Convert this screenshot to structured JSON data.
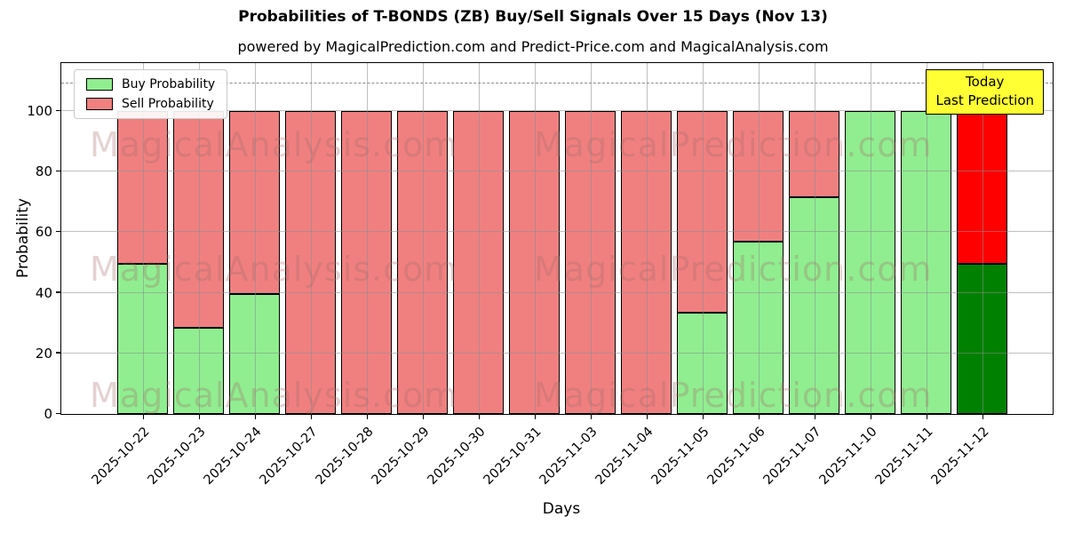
{
  "title": "Probabilities of T-BONDS (ZB) Buy/Sell Signals Over 15 Days (Nov 13)",
  "subtitle": "powered by MagicalPrediction.com and Predict-Price.com and MagicalAnalysis.com",
  "legend": {
    "buy_label": "Buy Probability",
    "sell_label": "Sell Probability"
  },
  "annotation": {
    "line1": "Today",
    "line2": "Last Prediction"
  },
  "axes": {
    "ylabel": "Probability",
    "xlabel": "Days",
    "yticks": [
      0,
      20,
      40,
      60,
      80,
      100
    ]
  },
  "watermarks": {
    "left": "MagicalAnalysis.com",
    "right": "MagicalPrediction.com"
  },
  "colors": {
    "buy": "#90ee90",
    "sell": "#f08080",
    "today_buy": "#008000",
    "today_sell": "#ff0000",
    "annotation_bg": "#ffff33",
    "grid": "#8c8c8c",
    "bar_edge": "#000000"
  },
  "chart_data": {
    "type": "bar",
    "stacked": true,
    "title": "Probabilities of T-BONDS (ZB) Buy/Sell Signals Over 15 Days (Nov 13)",
    "xlabel": "Days",
    "ylabel": "Probability",
    "ylim": [
      0,
      116.4
    ],
    "grid": true,
    "legend_position": "upper left",
    "dashed_line_y": 110,
    "today_index": 15,
    "categories": [
      "2025-10-22",
      "2025-10-23",
      "2025-10-24",
      "2025-10-27",
      "2025-10-28",
      "2025-10-29",
      "2025-10-30",
      "2025-10-31",
      "2025-11-03",
      "2025-11-04",
      "2025-11-05",
      "2025-11-06",
      "2025-11-07",
      "2025-11-10",
      "2025-11-11",
      "2025-11-12"
    ],
    "series": [
      {
        "name": "Buy Probability",
        "values": [
          49.5,
          28.5,
          39.5,
          0,
          0,
          0,
          0,
          0,
          0,
          0,
          33.5,
          57,
          71.5,
          100,
          100,
          49.5
        ]
      },
      {
        "name": "Sell Probability",
        "values": [
          50.5,
          71.5,
          60.5,
          100,
          100,
          100,
          100,
          100,
          100,
          100,
          66.5,
          43,
          28.5,
          0,
          0,
          50.5
        ]
      }
    ]
  }
}
